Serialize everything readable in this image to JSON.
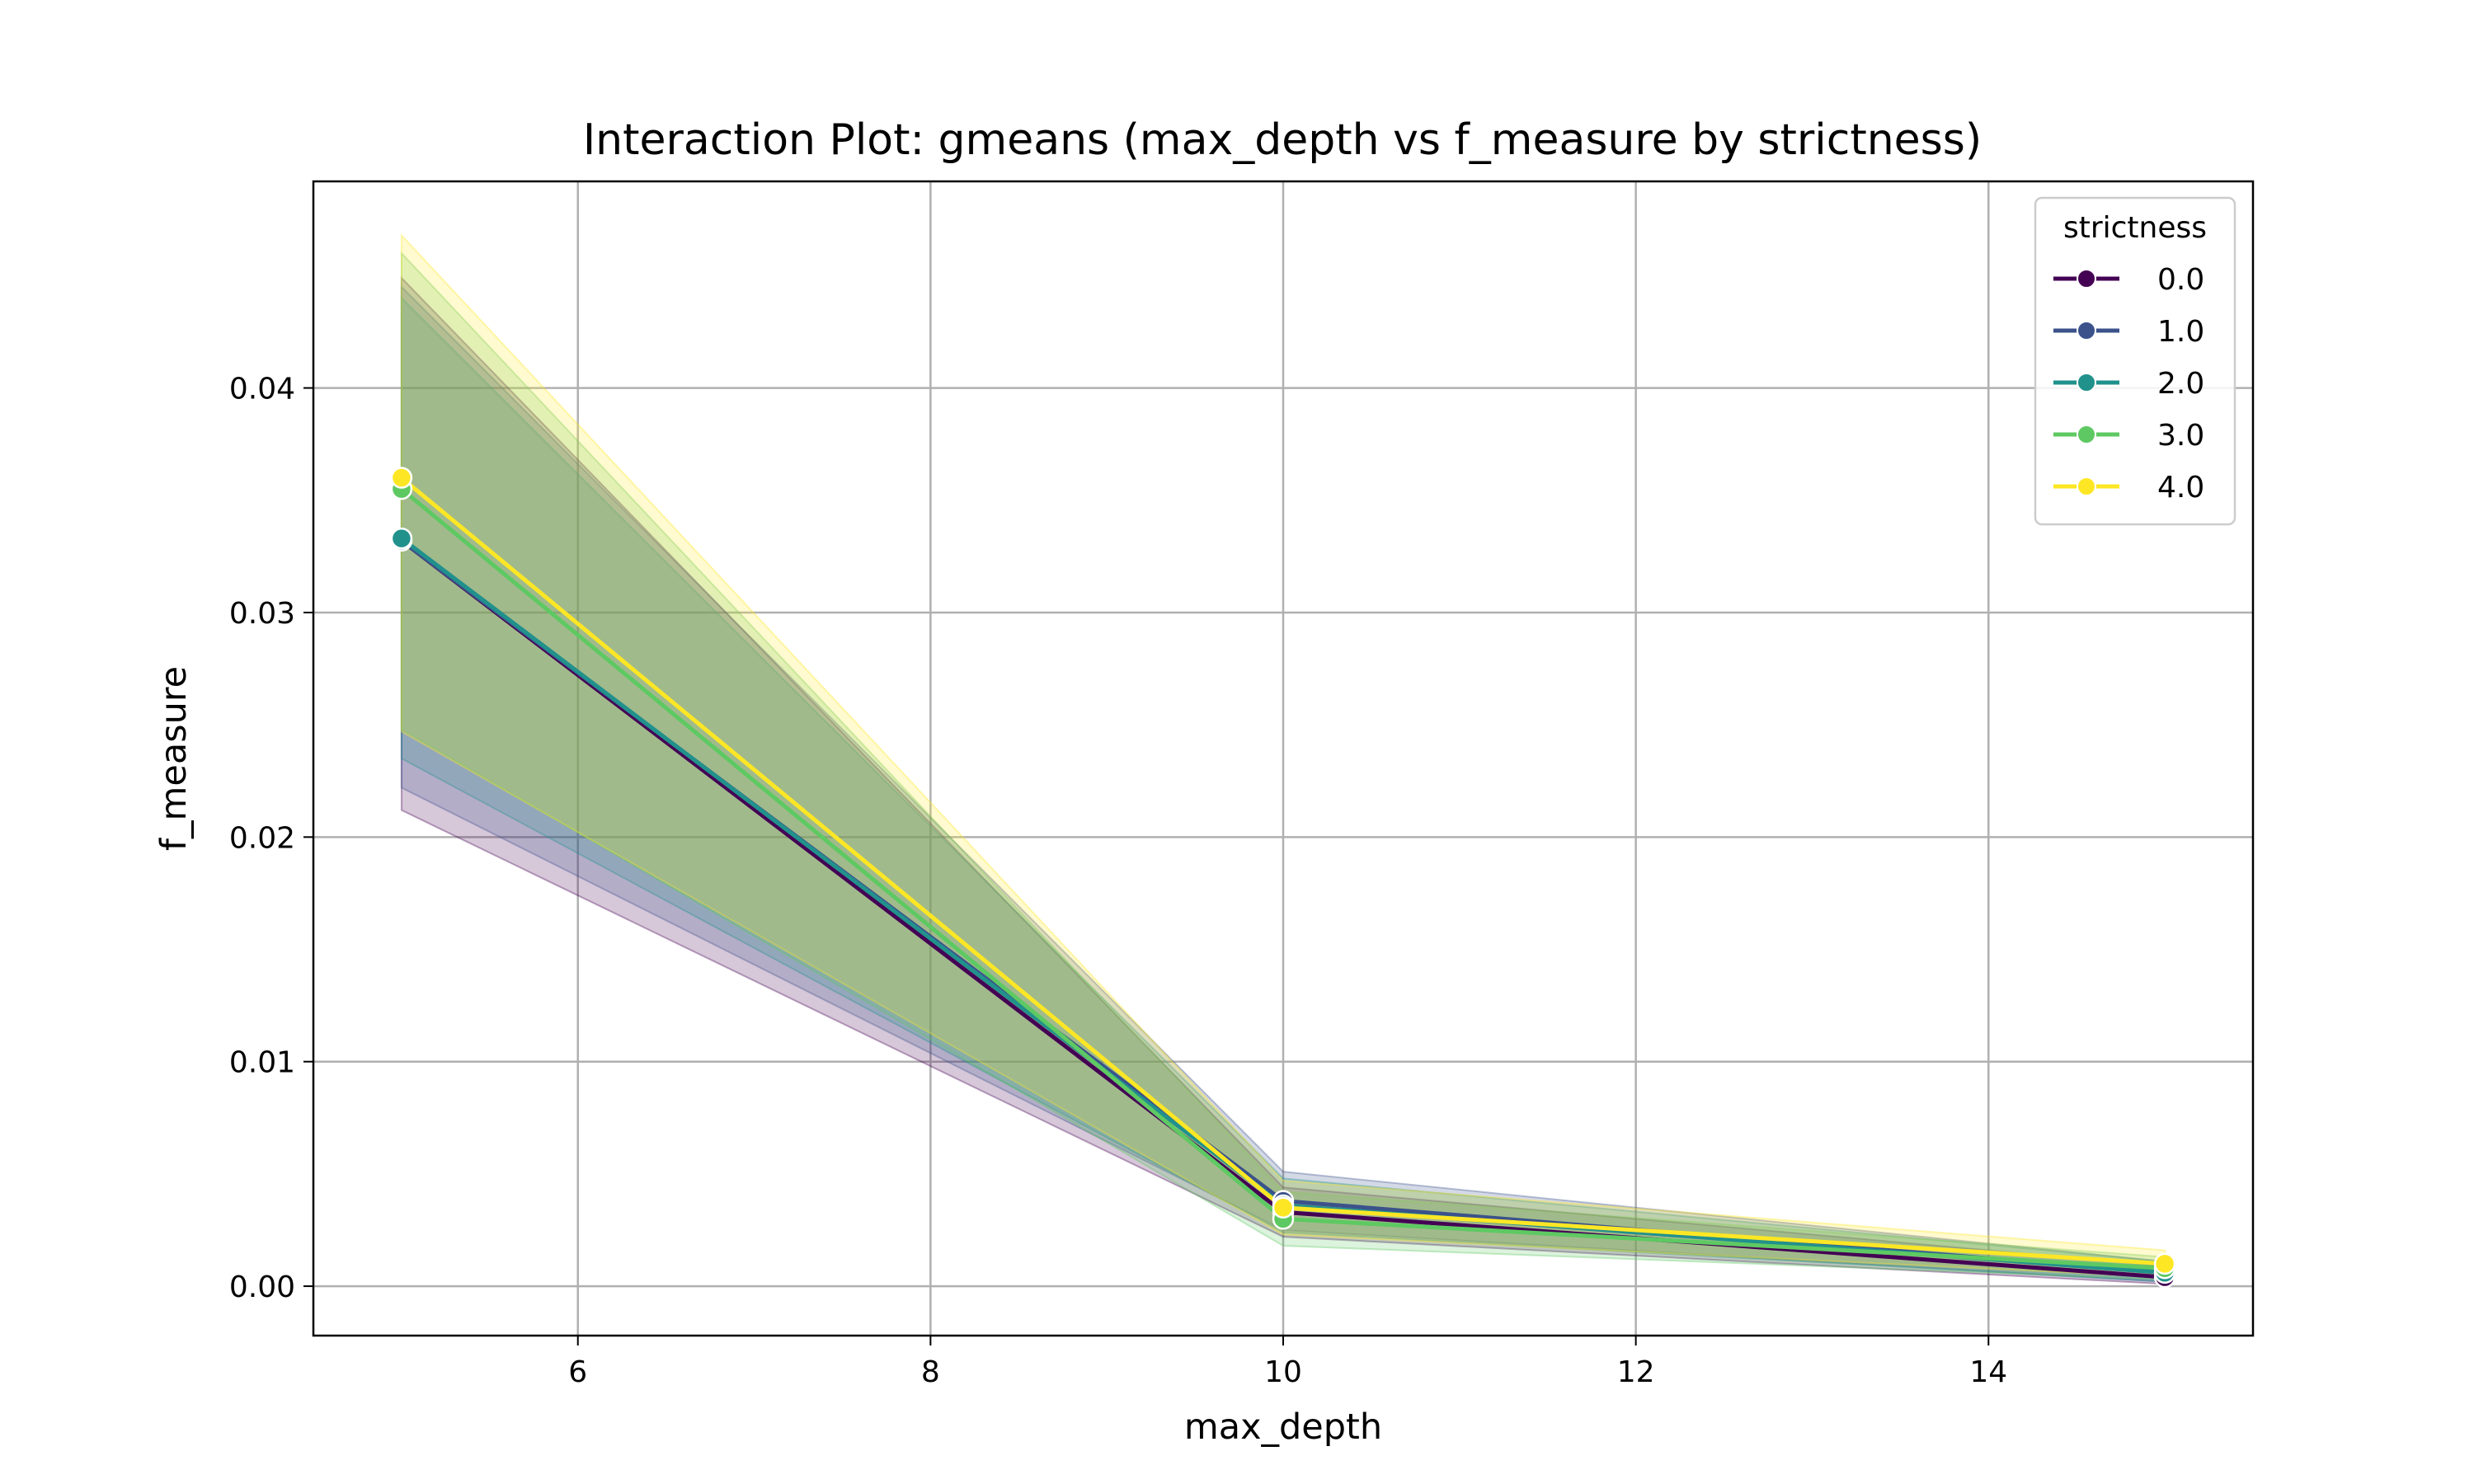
{
  "chart_data": {
    "type": "line",
    "title": "Interaction Plot: gmeans (max_depth vs f_measure by strictness)",
    "xlabel": "max_depth",
    "ylabel": "f_measure",
    "x": [
      5,
      10,
      15
    ],
    "xlim": [
      4.5,
      15.5
    ],
    "ylim": [
      -0.0022,
      0.0492
    ],
    "xticks": [
      6,
      8,
      10,
      12,
      14
    ],
    "xtick_labels": [
      "6",
      "8",
      "10",
      "12",
      "14"
    ],
    "yticks": [
      0.0,
      0.01,
      0.02,
      0.03,
      0.04
    ],
    "ytick_labels": [
      "0.00",
      "0.01",
      "0.02",
      "0.03",
      "0.04"
    ],
    "grid": true,
    "legend": {
      "title": "strictness",
      "placement": "top-right"
    },
    "series": [
      {
        "name": "0.0",
        "color": "#440154",
        "values": [
          0.0332,
          0.0033,
          0.0004
        ],
        "ci_low": [
          0.0212,
          0.0022,
          0.0001
        ],
        "ci_high": [
          0.0449,
          0.0044,
          0.0009
        ]
      },
      {
        "name": "1.0",
        "color": "#3b528b",
        "values": [
          0.0332,
          0.0038,
          0.0006
        ],
        "ci_low": [
          0.0222,
          0.0025,
          0.0002
        ],
        "ci_high": [
          0.0445,
          0.0051,
          0.0011
        ]
      },
      {
        "name": "2.0",
        "color": "#21918c",
        "values": [
          0.0333,
          0.0036,
          0.0006
        ],
        "ci_low": [
          0.0235,
          0.0024,
          0.0002
        ],
        "ci_high": [
          0.044,
          0.0048,
          0.0011
        ]
      },
      {
        "name": "3.0",
        "color": "#5ec962",
        "values": [
          0.0355,
          0.003,
          0.0008
        ],
        "ci_low": [
          0.0248,
          0.0018,
          0.0003
        ],
        "ci_high": [
          0.046,
          0.0042,
          0.0013
        ]
      },
      {
        "name": "4.0",
        "color": "#fde725",
        "values": [
          0.036,
          0.0035,
          0.001
        ],
        "ci_low": [
          0.0247,
          0.0023,
          0.0004
        ],
        "ci_high": [
          0.0468,
          0.0047,
          0.0016
        ]
      }
    ]
  }
}
